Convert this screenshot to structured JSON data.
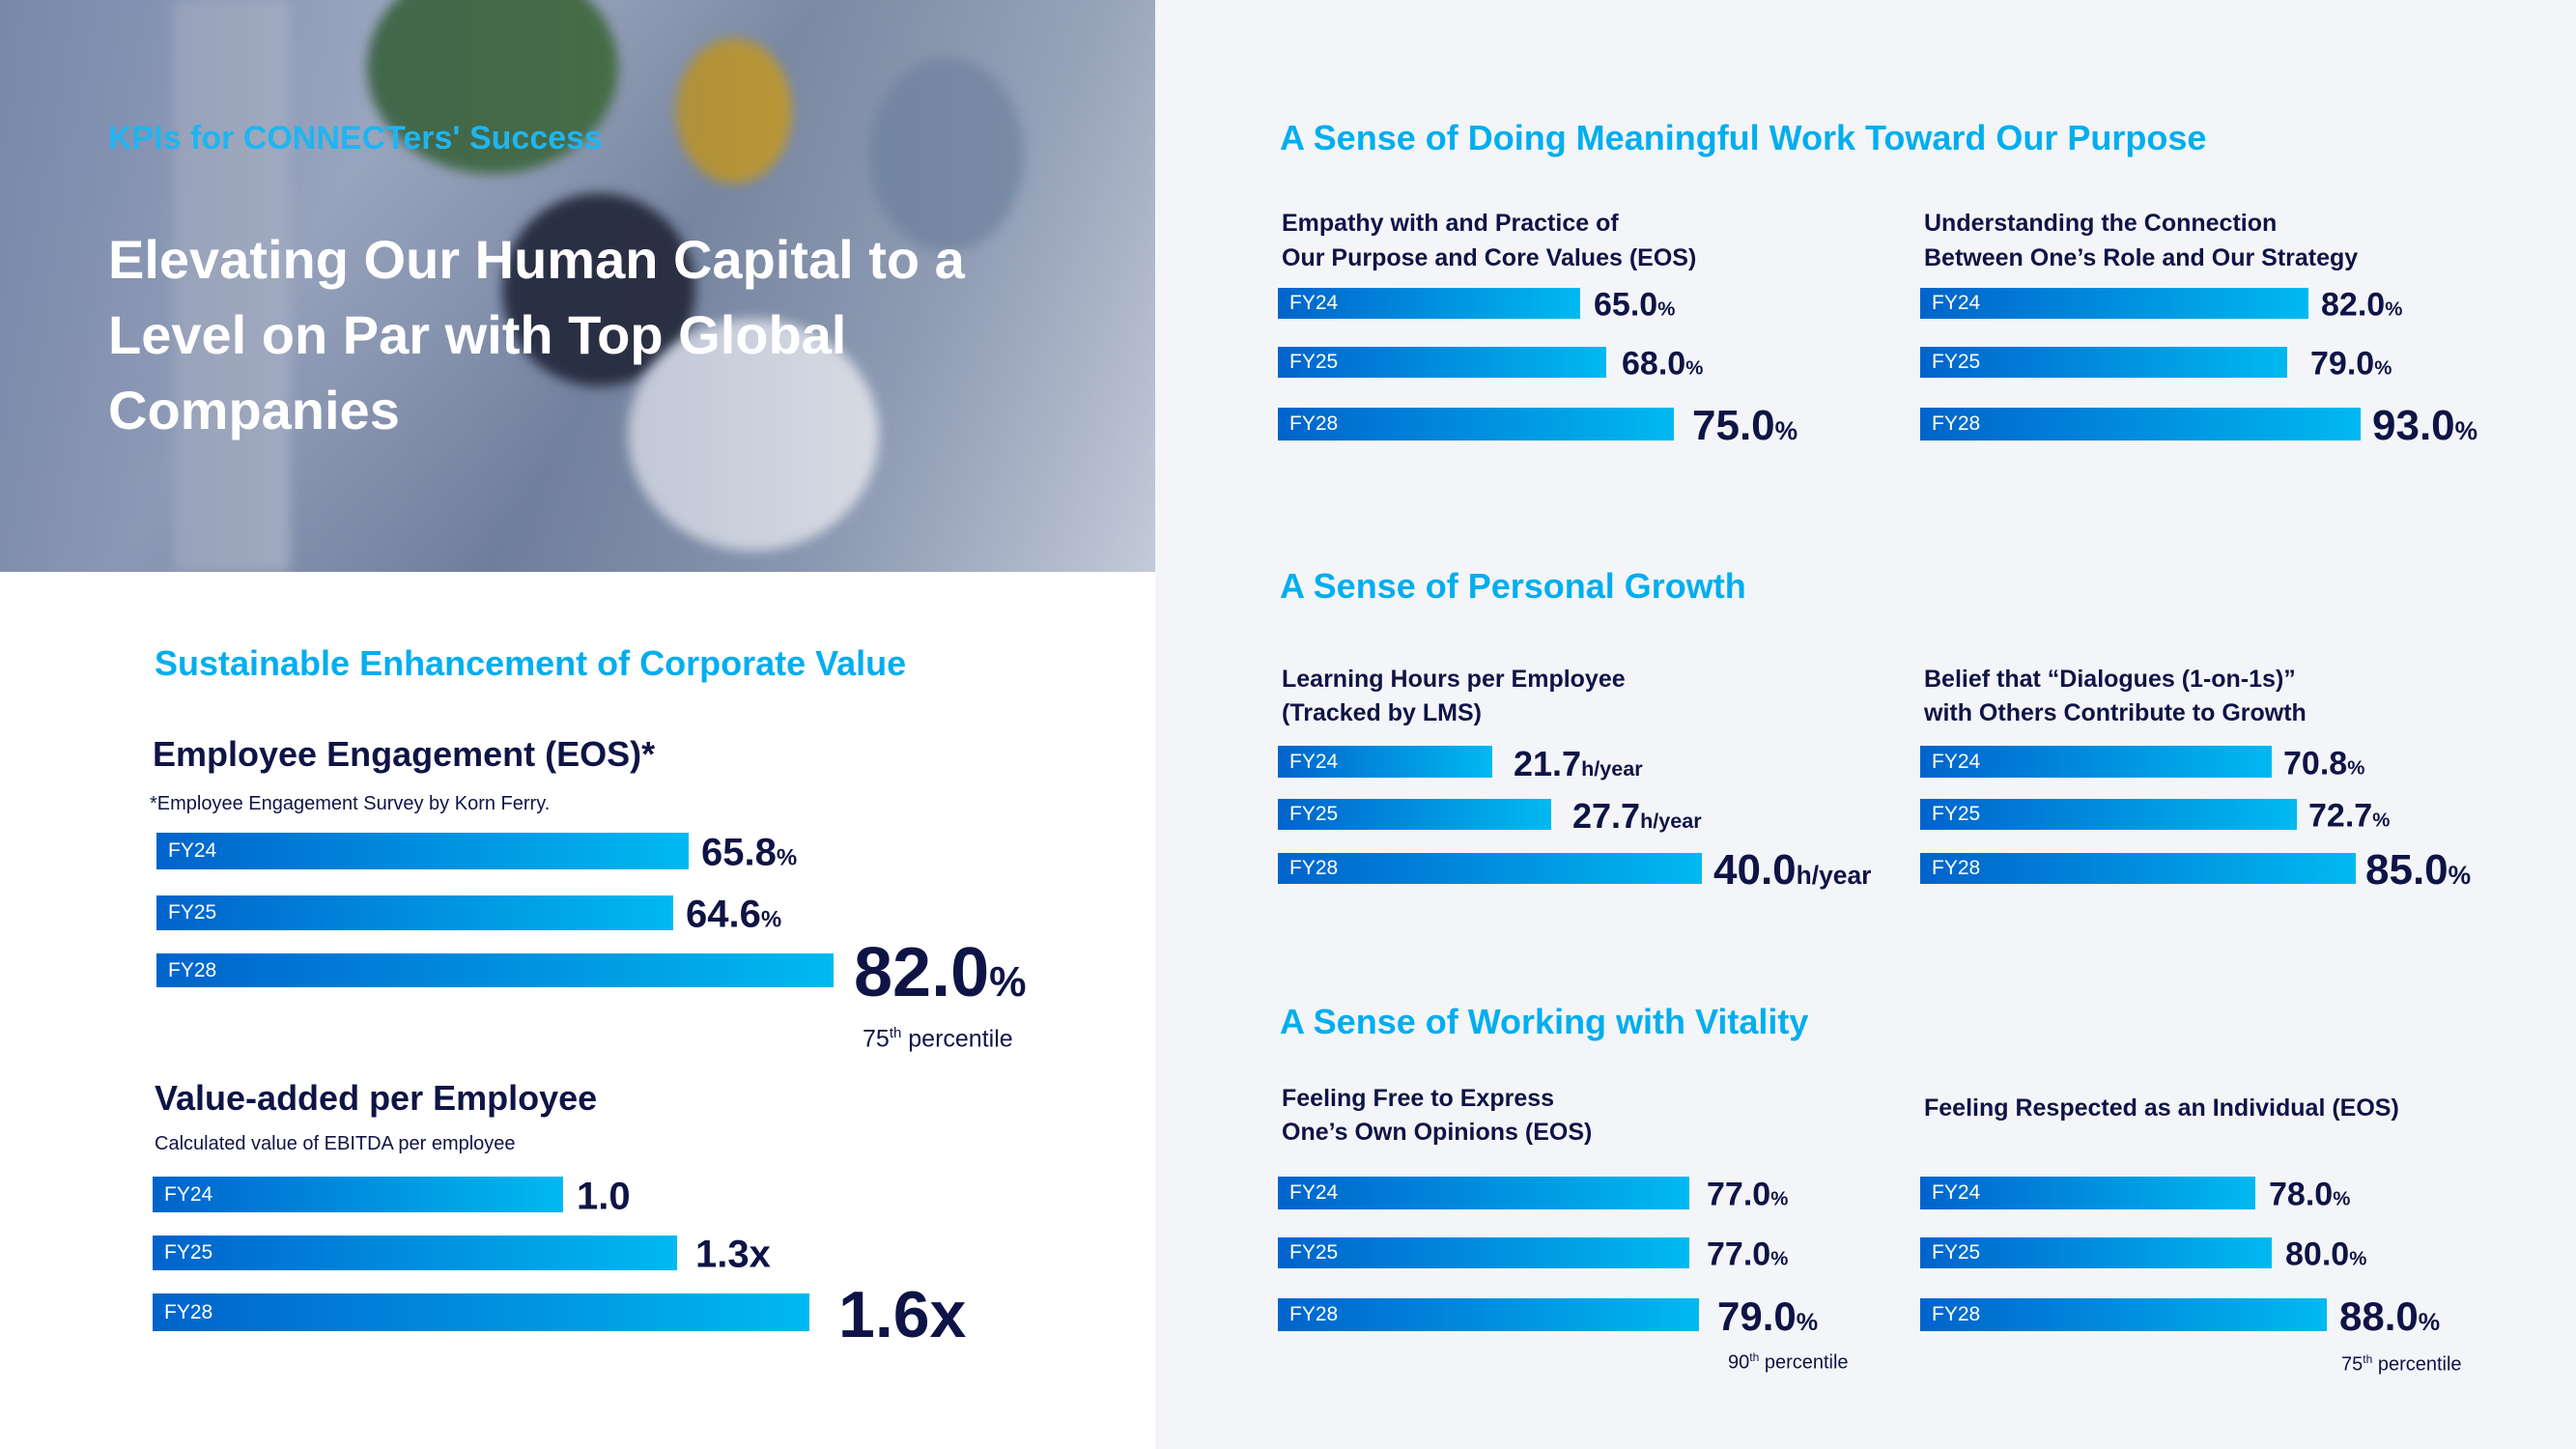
{
  "colors": {
    "accent": "#00aeef",
    "navy": "#0f1446",
    "bar_start": "#0063cb",
    "bar_end": "#00b9f1",
    "right_bg": "#f4f5f8"
  },
  "hero": {
    "tag": "KPIs for CONNECTers' Success",
    "headline_lines": [
      "Elevating Our Human Capital to a",
      "Level on Par with Top Global",
      "Companies"
    ]
  },
  "corporate": {
    "title": "Sustainable Enhancement of Corporate Value",
    "engagement": {
      "title": "Employee Engagement (EOS)*",
      "note": "*Employee Engagement Survey by Korn Ferry.",
      "bars": [
        {
          "label": "FY24",
          "value": "65.8",
          "unit": "%"
        },
        {
          "label": "FY25",
          "value": "64.6",
          "unit": "%"
        },
        {
          "label": "FY28",
          "value": "82.0",
          "unit": "%"
        }
      ],
      "percentile": {
        "num": "75",
        "sup": "th",
        "text": " percentile"
      }
    },
    "value_added": {
      "title": "Value-added per Employee",
      "note": "Calculated value of EBITDA per employee",
      "bars": [
        {
          "label": "FY24",
          "value": "1.0",
          "unit": ""
        },
        {
          "label": "FY25",
          "value": "1.3x",
          "unit": ""
        },
        {
          "label": "FY28",
          "value": "1.6x",
          "unit": ""
        }
      ]
    }
  },
  "sections": [
    {
      "title": "A Sense of Doing Meaningful Work Toward Our Purpose",
      "groups": [
        {
          "title_lines": [
            "Empathy with and Practice of",
            "Our Purpose and Core Values (EOS)"
          ],
          "bars": [
            {
              "label": "FY24",
              "value": "65.0",
              "unit": "%"
            },
            {
              "label": "FY25",
              "value": "68.0",
              "unit": "%"
            },
            {
              "label": "FY28",
              "value": "75.0",
              "unit": "%"
            }
          ]
        },
        {
          "title_lines": [
            "Understanding the Connection",
            "Between One’s Role and Our Strategy"
          ],
          "bars": [
            {
              "label": "FY24",
              "value": "82.0",
              "unit": "%"
            },
            {
              "label": "FY25",
              "value": "79.0",
              "unit": "%"
            },
            {
              "label": "FY28",
              "value": "93.0",
              "unit": "%"
            }
          ]
        }
      ]
    },
    {
      "title": "A Sense of Personal Growth",
      "groups": [
        {
          "title_lines": [
            "Learning Hours per Employee",
            "(Tracked by LMS)"
          ],
          "bars": [
            {
              "label": "FY24",
              "value": "21.7",
              "unit": "h/year"
            },
            {
              "label": "FY25",
              "value": "27.7",
              "unit": "h/year"
            },
            {
              "label": "FY28",
              "value": "40.0",
              "unit": "h/year"
            }
          ]
        },
        {
          "title_lines": [
            "Belief that “Dialogues (1-on-1s)”",
            "with Others Contribute to Growth"
          ],
          "bars": [
            {
              "label": "FY24",
              "value": "70.8",
              "unit": "%"
            },
            {
              "label": "FY25",
              "value": "72.7",
              "unit": "%"
            },
            {
              "label": "FY28",
              "value": "85.0",
              "unit": "%"
            }
          ]
        }
      ]
    },
    {
      "title": "A Sense of Working with Vitality",
      "groups": [
        {
          "title_lines": [
            "Feeling Free to Express",
            "One’s Own Opinions (EOS)"
          ],
          "bars": [
            {
              "label": "FY24",
              "value": "77.0",
              "unit": "%"
            },
            {
              "label": "FY25",
              "value": "77.0",
              "unit": "%"
            },
            {
              "label": "FY28",
              "value": "79.0",
              "unit": "%"
            }
          ],
          "percentile": {
            "num": "90",
            "sup": "th",
            "text": " percentile"
          }
        },
        {
          "title_lines": [
            "Feeling Respected as an Individual (EOS)"
          ],
          "bars": [
            {
              "label": "FY24",
              "value": "78.0",
              "unit": "%"
            },
            {
              "label": "FY25",
              "value": "80.0",
              "unit": "%"
            },
            {
              "label": "FY28",
              "value": "88.0",
              "unit": "%"
            }
          ],
          "percentile": {
            "num": "75",
            "sup": "th",
            "text": " percentile"
          }
        }
      ]
    }
  ]
}
